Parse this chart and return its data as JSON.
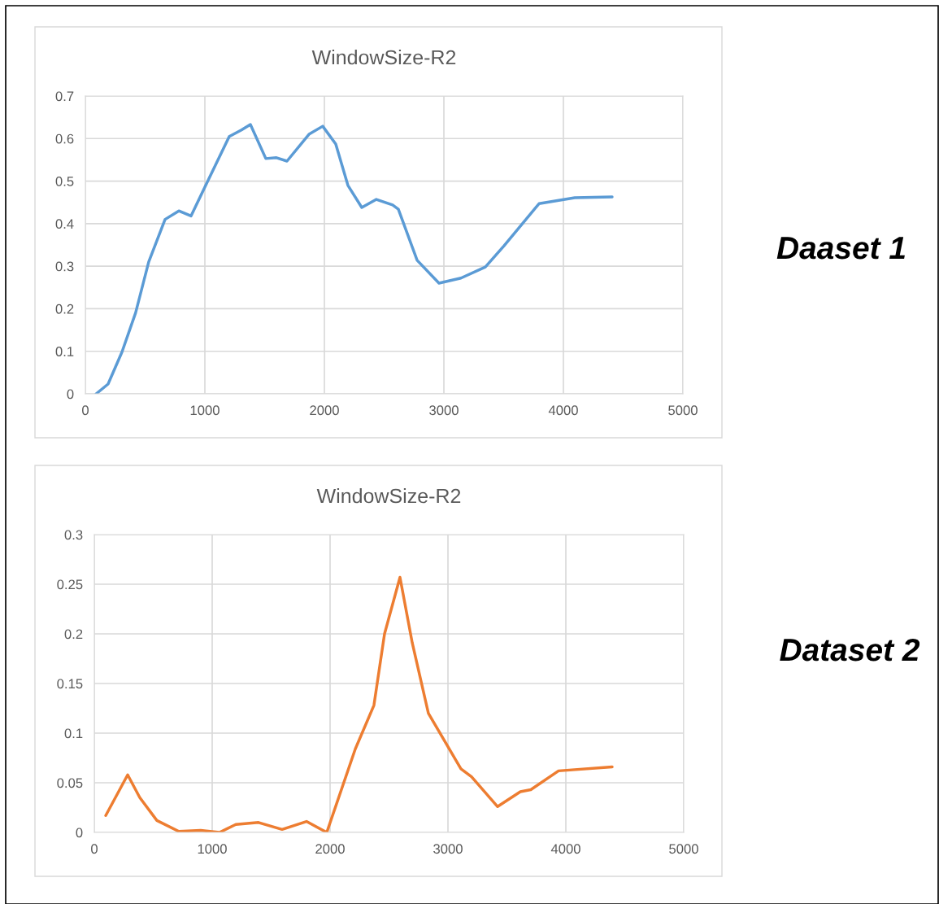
{
  "chart_data": [
    {
      "type": "line",
      "title": "WindowSize-R2",
      "annotations": [
        "Daaset 1"
      ],
      "xlim": [
        0,
        5000
      ],
      "xticks": [
        0,
        1000,
        2000,
        3000,
        4000,
        5000
      ],
      "ylim": [
        0,
        0.7
      ],
      "yticks": [
        0,
        0.1,
        0.2,
        0.3,
        0.4,
        0.5,
        0.6,
        0.7
      ],
      "grid": true,
      "legend": false,
      "series": [
        {
          "color": "#5b9bd5",
          "x": [
            90,
            190,
            306,
            420,
            530,
            667,
            782,
            884,
            1007,
            1204,
            1306,
            1381,
            1510,
            1599,
            1687,
            1871,
            1986,
            2095,
            2197,
            2313,
            2435,
            2571,
            2619,
            2776,
            2959,
            3143,
            3347,
            3503,
            3796,
            4095,
            4408
          ],
          "values": [
            0,
            0.023,
            0.098,
            0.19,
            0.31,
            0.41,
            0.43,
            0.418,
            0.49,
            0.605,
            0.62,
            0.633,
            0.553,
            0.555,
            0.547,
            0.61,
            0.629,
            0.587,
            0.49,
            0.438,
            0.457,
            0.444,
            0.434,
            0.314,
            0.26,
            0.272,
            0.298,
            0.348,
            0.447,
            0.461,
            0.463
          ]
        }
      ]
    },
    {
      "type": "line",
      "title": "WindowSize-R2",
      "annotations": [
        "Dataset 2"
      ],
      "xlim": [
        0,
        5000
      ],
      "xticks": [
        0,
        1000,
        2000,
        3000,
        4000,
        5000
      ],
      "ylim": [
        0,
        0.3
      ],
      "yticks": [
        0,
        0.05,
        0.1,
        0.15,
        0.2,
        0.25,
        0.3
      ],
      "grid": true,
      "legend": false,
      "series": [
        {
          "color": "#ed7d31",
          "x": [
            97,
            283,
            386,
            531,
            717,
            903,
            1062,
            1200,
            1393,
            1593,
            1800,
            1972,
            2214,
            2372,
            2462,
            2593,
            2697,
            2834,
            3110,
            3200,
            3421,
            3614,
            3703,
            3938,
            4393
          ],
          "values": [
            0.017,
            0.058,
            0.035,
            0.012,
            0.001,
            0.002,
            0,
            0.008,
            0.01,
            0.003,
            0.011,
            0,
            0.084,
            0.128,
            0.2,
            0.257,
            0.191,
            0.12,
            0.064,
            0.056,
            0.026,
            0.041,
            0.043,
            0.062,
            0.066
          ]
        }
      ]
    }
  ]
}
